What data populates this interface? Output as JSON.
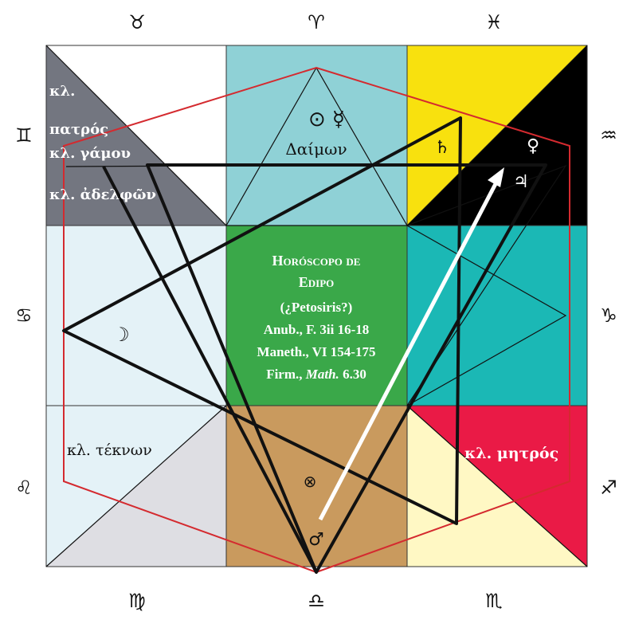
{
  "zodiac": {
    "top": [
      "♉",
      "♈",
      "♓"
    ],
    "left": [
      "♊",
      "♋",
      "♌"
    ],
    "right": [
      "♒",
      "♑",
      "♐"
    ],
    "bottom": [
      "♍",
      "♎",
      "♏"
    ]
  },
  "lots": {
    "father_line1": "κλ.",
    "father_line2": "πατρός",
    "marriage": "κλ. γάμου",
    "siblings": "κλ. ἀδελφῶν",
    "children": "κλ. τέκνων",
    "mother": "κλ. μητρός"
  },
  "daimon": {
    "planets": "⊙ ☿",
    "label": "Δαίμων"
  },
  "planets": {
    "saturn": "♄",
    "venus": "♀",
    "jupiter": "♃",
    "moon": "☽",
    "fortune": "⊗",
    "mars": "♂"
  },
  "center": {
    "title1": "Horóscopo de",
    "title2": "Edipo",
    "line3": "(¿Petosiris?)",
    "line4": "Anub., F. 3ii 16-18",
    "line5": "Maneth., VI 154-175",
    "line6a": "Firm., ",
    "line6b": "Math.",
    "line6c": " 6.30"
  },
  "colors": {
    "gray": "#737680",
    "lightblue": "#8fd1d6",
    "paleblue": "#e4f2f7",
    "green": "#3aa849",
    "teal": "#1bb8b5",
    "yellow": "#f8e10e",
    "black": "#000000",
    "tan": "#c99a5e",
    "red": "#ea1a46",
    "cream": "#fff8c4",
    "lightgray": "#dedee3",
    "redline": "#d42a2f"
  }
}
